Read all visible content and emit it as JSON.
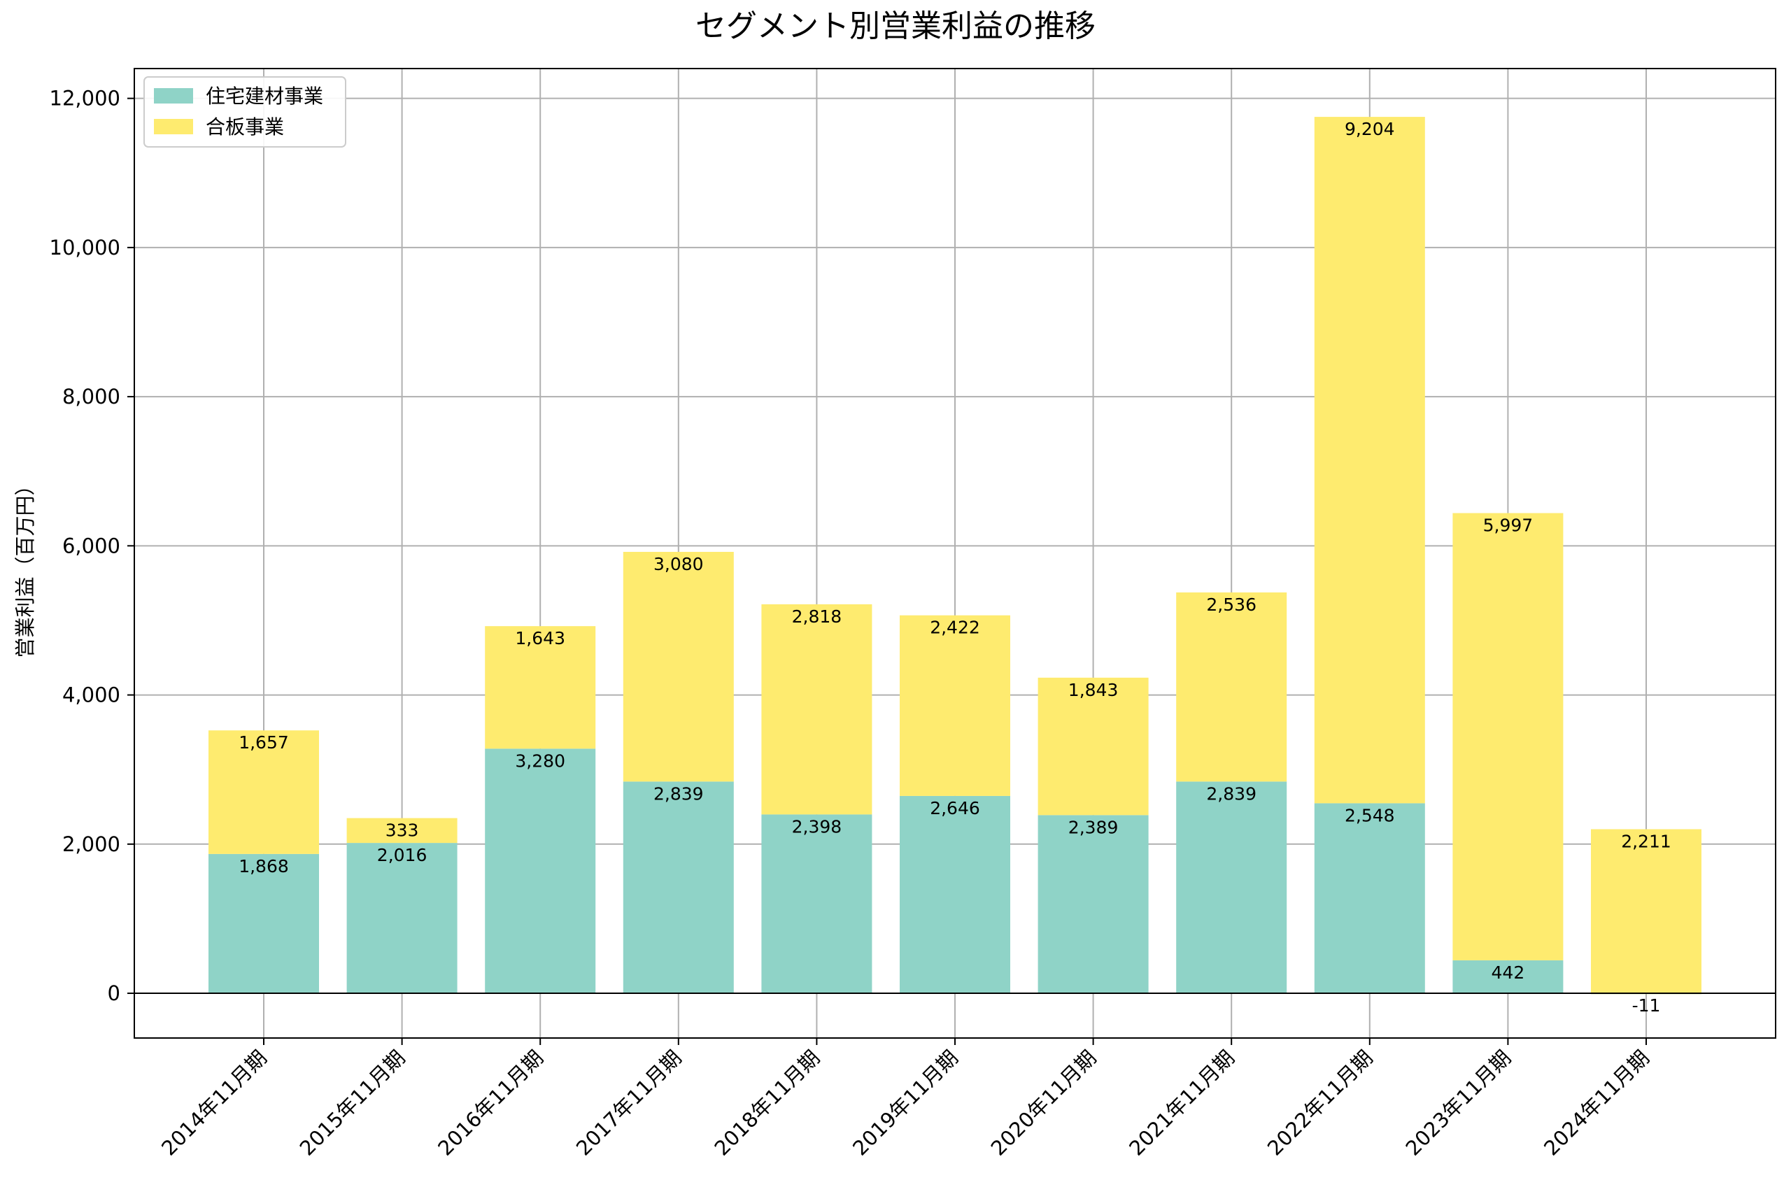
{
  "chart_data": {
    "type": "bar",
    "stacked": true,
    "title": "セグメント別営業利益の推移",
    "xlabel": "",
    "ylabel": "営業利益（百万円）",
    "ylim": [
      -600,
      12400
    ],
    "yticks": [
      0,
      2000,
      4000,
      6000,
      8000,
      10000,
      12000
    ],
    "ytick_labels": [
      "0",
      "2,000",
      "4,000",
      "6,000",
      "8,000",
      "10,000",
      "12,000"
    ],
    "grid": true,
    "legend_position": "top-left",
    "categories": [
      "2014年11月期",
      "2015年11月期",
      "2016年11月期",
      "2017年11月期",
      "2018年11月期",
      "2019年11月期",
      "2020年11月期",
      "2021年11月期",
      "2022年11月期",
      "2023年11月期",
      "2024年11月期"
    ],
    "series": [
      {
        "name": "住宅建材事業",
        "color": "#8fd3c7",
        "values": [
          1868,
          2016,
          3280,
          2839,
          2398,
          2646,
          2389,
          2839,
          2548,
          442,
          -11
        ],
        "labels": [
          "1,868",
          "2,016",
          "3,280",
          "2,839",
          "2,398",
          "2,646",
          "2,389",
          "2,839",
          "2,548",
          "442",
          "-11"
        ]
      },
      {
        "name": "合板事業",
        "color": "#feeb6f",
        "values": [
          1657,
          333,
          1643,
          3080,
          2818,
          2422,
          1843,
          2536,
          9204,
          5997,
          2211
        ],
        "labels": [
          "1,657",
          "333",
          "1,643",
          "3,080",
          "2,818",
          "2,422",
          "1,843",
          "2,536",
          "9,204",
          "5,997",
          "2,211"
        ]
      }
    ]
  }
}
